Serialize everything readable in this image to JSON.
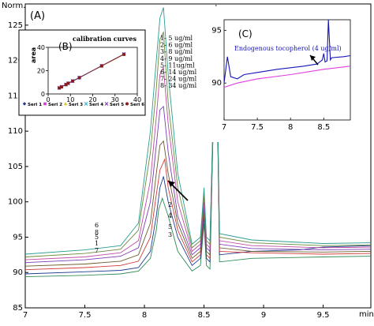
{
  "chart_data": [
    {
      "panel_id": "main",
      "type": "line",
      "ylabel": "Norm.",
      "xlabel": "min",
      "xlim": [
        7,
        9.9
      ],
      "ylim": [
        85,
        128
      ],
      "xticks": [
        "7",
        "7.5",
        "8",
        "8.5",
        "9",
        "9.5"
      ],
      "yticks": [
        "85",
        "90",
        "95",
        "100",
        "105",
        "110",
        "115",
        "120",
        "125"
      ],
      "series": [
        {
          "name": "1",
          "color": "#2e8b57",
          "points": [
            [
              7.0,
              89.4
            ],
            [
              7.5,
              89.6
            ],
            [
              7.8,
              89.8
            ],
            [
              7.95,
              90.2
            ],
            [
              8.05,
              92
            ],
            [
              8.1,
              96
            ],
            [
              8.12,
              99
            ],
            [
              8.15,
              100.5
            ],
            [
              8.2,
              98
            ],
            [
              8.28,
              93
            ],
            [
              8.4,
              90.2
            ],
            [
              8.47,
              91
            ],
            [
              8.5,
              97
            ],
            [
              8.52,
              91
            ],
            [
              8.55,
              90.5
            ],
            [
              8.6,
              128
            ],
            [
              8.63,
              91.5
            ],
            [
              8.9,
              92
            ],
            [
              9.5,
              92.2
            ],
            [
              9.9,
              92.3
            ]
          ]
        },
        {
          "name": "2",
          "color": "#1f3b8f",
          "points": [
            [
              7.0,
              89.8
            ],
            [
              7.5,
              90.1
            ],
            [
              7.8,
              90.3
            ],
            [
              7.95,
              90.7
            ],
            [
              8.05,
              93
            ],
            [
              8.1,
              98
            ],
            [
              8.13,
              102
            ],
            [
              8.16,
              103.6
            ],
            [
              8.2,
              100
            ],
            [
              8.28,
              95
            ],
            [
              8.4,
              91
            ],
            [
              8.47,
              92
            ],
            [
              8.5,
              98
            ],
            [
              8.52,
              92
            ],
            [
              8.55,
              91.5
            ],
            [
              8.6,
              128
            ],
            [
              8.63,
              92.5
            ],
            [
              8.9,
              93
            ],
            [
              9.3,
              93.2
            ],
            [
              9.5,
              93.6
            ],
            [
              9.9,
              93.8
            ]
          ]
        },
        {
          "name": "3",
          "color": "#d23a3a",
          "points": [
            [
              7.0,
              90.4
            ],
            [
              7.5,
              90.7
            ],
            [
              7.8,
              91
            ],
            [
              7.95,
              91.6
            ],
            [
              8.05,
              95
            ],
            [
              8.1,
              101
            ],
            [
              8.13,
              104.5
            ],
            [
              8.17,
              106
            ],
            [
              8.2,
              102
            ],
            [
              8.28,
              96
            ],
            [
              8.4,
              91.5
            ],
            [
              8.47,
              92.5
            ],
            [
              8.5,
              98.5
            ],
            [
              8.52,
              92.5
            ],
            [
              8.55,
              92
            ],
            [
              8.6,
              128
            ],
            [
              8.63,
              93
            ],
            [
              8.9,
              92.8
            ],
            [
              9.5,
              92.6
            ],
            [
              9.9,
              92.7
            ]
          ]
        },
        {
          "name": "4",
          "color": "#6b5a2e",
          "points": [
            [
              7.0,
              90.9
            ],
            [
              7.5,
              91.2
            ],
            [
              7.8,
              91.6
            ],
            [
              7.95,
              92.5
            ],
            [
              8.05,
              97
            ],
            [
              8.1,
              104
            ],
            [
              8.13,
              108
            ],
            [
              8.16,
              108.6
            ],
            [
              8.2,
              104
            ],
            [
              8.28,
              97
            ],
            [
              8.4,
              92
            ],
            [
              8.47,
              93
            ],
            [
              8.5,
              99
            ],
            [
              8.52,
              93
            ],
            [
              8.55,
              92.5
            ],
            [
              8.6,
              128
            ],
            [
              8.63,
              93.5
            ],
            [
              8.9,
              93
            ],
            [
              9.5,
              92.9
            ],
            [
              9.9,
              93
            ]
          ]
        },
        {
          "name": "5",
          "color": "#7a3db8",
          "points": [
            [
              7.0,
              91.4
            ],
            [
              7.5,
              91.8
            ],
            [
              7.8,
              92.3
            ],
            [
              7.95,
              93.5
            ],
            [
              8.05,
              100
            ],
            [
              8.1,
              108
            ],
            [
              8.13,
              113
            ],
            [
              8.16,
              113.5
            ],
            [
              8.2,
              107
            ],
            [
              8.28,
              98
            ],
            [
              8.4,
              92.5
            ],
            [
              8.47,
              93.5
            ],
            [
              8.5,
              99.5
            ],
            [
              8.52,
              93.5
            ],
            [
              8.55,
              93
            ],
            [
              8.6,
              128
            ],
            [
              8.63,
              94
            ],
            [
              8.9,
              93.4
            ],
            [
              9.5,
              93.2
            ],
            [
              9.9,
              93.3
            ]
          ]
        },
        {
          "name": "6",
          "color": "#c04aa0",
          "points": [
            [
              7.0,
              91.8
            ],
            [
              7.5,
              92.2
            ],
            [
              7.8,
              92.8
            ],
            [
              7.95,
              94.5
            ],
            [
              8.05,
              103
            ],
            [
              8.1,
              112
            ],
            [
              8.13,
              118
            ],
            [
              8.16,
              119
            ],
            [
              8.2,
              111
            ],
            [
              8.28,
              100
            ],
            [
              8.4,
              93
            ],
            [
              8.47,
              94
            ],
            [
              8.5,
              100
            ],
            [
              8.52,
              94
            ],
            [
              8.55,
              93.5
            ],
            [
              8.6,
              128
            ],
            [
              8.63,
              94.5
            ],
            [
              8.9,
              93.8
            ],
            [
              9.5,
              93.5
            ],
            [
              9.9,
              93.6
            ]
          ]
        },
        {
          "name": "7",
          "color": "#6a8a3a",
          "points": [
            [
              7.0,
              92.2
            ],
            [
              7.5,
              92.7
            ],
            [
              7.8,
              93.3
            ],
            [
              7.95,
              96
            ],
            [
              8.05,
              107
            ],
            [
              8.1,
              116
            ],
            [
              8.13,
              123
            ],
            [
              8.16,
              124
            ],
            [
              8.2,
              114
            ],
            [
              8.28,
              102
            ],
            [
              8.4,
              93.5
            ],
            [
              8.47,
              94.5
            ],
            [
              8.5,
              101
            ],
            [
              8.52,
              94.5
            ],
            [
              8.55,
              94
            ],
            [
              8.6,
              128
            ],
            [
              8.63,
              95
            ],
            [
              8.9,
              94.2
            ],
            [
              9.5,
              93.8
            ],
            [
              9.9,
              93.9
            ]
          ]
        },
        {
          "name": "8",
          "color": "#2a9d8f",
          "points": [
            [
              7.0,
              92.6
            ],
            [
              7.5,
              93.2
            ],
            [
              7.8,
              93.8
            ],
            [
              7.95,
              97
            ],
            [
              8.05,
              110
            ],
            [
              8.1,
              120
            ],
            [
              8.13,
              126
            ],
            [
              8.16,
              127.5
            ],
            [
              8.2,
              118
            ],
            [
              8.28,
              104
            ],
            [
              8.4,
              94
            ],
            [
              8.47,
              95
            ],
            [
              8.5,
              102
            ],
            [
              8.52,
              95
            ],
            [
              8.55,
              94.5
            ],
            [
              8.6,
              128
            ],
            [
              8.63,
              95.5
            ],
            [
              8.9,
              94.6
            ],
            [
              9.5,
              94.1
            ],
            [
              9.9,
              94.2
            ]
          ]
        }
      ],
      "annotations": {
        "panel_label": "(A)",
        "curve_labels_left": [
          "6",
          "8",
          "5",
          "1",
          "7"
        ],
        "curve_labels_right": [
          "2",
          "4",
          "5",
          "3"
        ],
        "concentration_legend": [
          "1- 5 ug/ml",
          "2- 6 ug/ml",
          "3- 8 ug/ml",
          "4- 9 ug/ml",
          "5- 11ug/ml",
          "6- 14 ug/ml",
          "7- 24 ug/ml",
          "8- 34 ug/ml"
        ]
      }
    },
    {
      "panel_id": "inset_B",
      "type": "scatter",
      "title": "calibration curves",
      "panel_label": "(B)",
      "ylabel": "area",
      "xlim": [
        0,
        40
      ],
      "ylim": [
        0,
        40
      ],
      "xticks": [
        "0",
        "10",
        "20",
        "30",
        "40"
      ],
      "yticks": [
        "0",
        "20",
        "40"
      ],
      "x": [
        5,
        6,
        8,
        9,
        11,
        14,
        24,
        34
      ],
      "series": [
        {
          "name": "Seri 1",
          "color": "#1f3b8f",
          "marker": "diamond",
          "values": [
            5.2,
            6.1,
            8.0,
            9.1,
            11.0,
            13.8,
            24.1,
            34.0
          ]
        },
        {
          "name": "Seri 2",
          "color": "#d23ad2",
          "marker": "square",
          "values": [
            5.0,
            6.3,
            8.2,
            9.3,
            11.2,
            14.1,
            24.3,
            34.2
          ]
        },
        {
          "name": "Seri 3",
          "color": "#d8c21a",
          "marker": "triangle",
          "values": [
            5.4,
            6.0,
            8.1,
            9.0,
            11.1,
            14.0,
            23.8,
            33.8
          ]
        },
        {
          "name": "Seri 4",
          "color": "#2ab7d8",
          "marker": "x",
          "values": [
            5.1,
            6.2,
            7.9,
            9.2,
            11.3,
            14.2,
            24.0,
            34.1
          ]
        },
        {
          "name": "Seri 5",
          "color": "#7a3db8",
          "marker": "star",
          "values": [
            5.3,
            6.1,
            8.2,
            9.1,
            10.9,
            13.9,
            24.2,
            34.3
          ]
        },
        {
          "name": "Seri 6",
          "color": "#8b1a1a",
          "marker": "circle",
          "values": [
            5.1,
            6.0,
            8.0,
            9.2,
            11.0,
            14.0,
            24.1,
            34.0
          ]
        }
      ]
    },
    {
      "panel_id": "inset_C",
      "type": "line",
      "panel_label": "(C)",
      "annotation": "Endogenous tocopherol (4 ug/ml)",
      "xlim": [
        7,
        8.9
      ],
      "ylim": [
        86.5,
        96
      ],
      "xticks": [
        "7",
        "7.5",
        "8",
        "8.5"
      ],
      "yticks": [
        "90",
        "95"
      ],
      "series": [
        {
          "name": "blue",
          "color": "#1515b8",
          "points": [
            [
              7.0,
              90.0
            ],
            [
              7.05,
              92.5
            ],
            [
              7.1,
              90.6
            ],
            [
              7.2,
              90.4
            ],
            [
              7.3,
              90.8
            ],
            [
              7.5,
              91.0
            ],
            [
              7.8,
              91.3
            ],
            [
              8.2,
              91.6
            ],
            [
              8.4,
              91.8
            ],
            [
              8.48,
              92.2
            ],
            [
              8.5,
              92.8
            ],
            [
              8.52,
              92.0
            ],
            [
              8.55,
              92.1
            ],
            [
              8.57,
              96
            ],
            [
              8.6,
              92.2
            ],
            [
              8.62,
              92.4
            ],
            [
              8.8,
              92.5
            ],
            [
              8.9,
              92.6
            ]
          ]
        },
        {
          "name": "magenta",
          "color": "#e040e0",
          "points": [
            [
              7.0,
              89.6
            ],
            [
              7.2,
              90.0
            ],
            [
              7.5,
              90.4
            ],
            [
              8.0,
              90.8
            ],
            [
              8.5,
              91.3
            ],
            [
              8.9,
              91.6
            ]
          ]
        }
      ]
    }
  ]
}
